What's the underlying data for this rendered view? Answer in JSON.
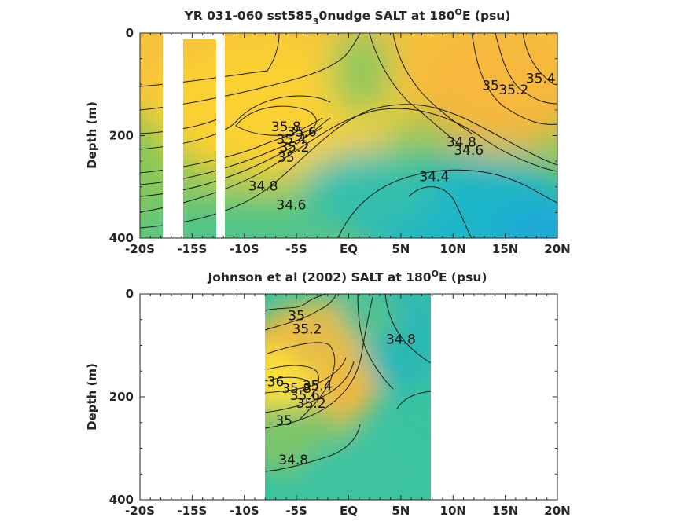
{
  "chart_data": [
    {
      "type": "heatmap",
      "subtype": "filled-contour",
      "title": "YR 031-060 sst585",
      "title_subscript": "3",
      "title_rest": "0nudge SALT at 180",
      "title_superscript": "O",
      "title_end": "E (psu)",
      "ylabel": "Depth (m)",
      "xlim": [
        -20,
        20
      ],
      "ylim": [
        0,
        400
      ],
      "y_reversed": true,
      "x_ticks": [
        -20,
        -15,
        -10,
        -5,
        0,
        5,
        10,
        15,
        20
      ],
      "x_tick_labels": [
        "-20S",
        "-15S",
        "-10S",
        "-5S",
        "EQ",
        "5N",
        "10N",
        "15N",
        "20N"
      ],
      "y_ticks": [
        0,
        200,
        400
      ],
      "y_tick_labels": [
        "0",
        "200",
        "400"
      ],
      "data_extent": [
        -20,
        20
      ],
      "blank_columns": [
        [
          -18.0,
          -16.2
        ],
        [
          -13.2,
          -12.3
        ]
      ],
      "colormap": "parula",
      "color_range": [
        34.2,
        36.0
      ],
      "contour_labels": [
        {
          "value": "35.8",
          "x": -6.0,
          "y": 182
        },
        {
          "value": "35.6",
          "x": -4.5,
          "y": 192
        },
        {
          "value": "35.4",
          "x": -5.5,
          "y": 207
        },
        {
          "value": "35.2",
          "x": -5.2,
          "y": 222
        },
        {
          "value": "35",
          "x": -6.0,
          "y": 242
        },
        {
          "value": "34.8",
          "x": -8.2,
          "y": 298
        },
        {
          "value": "34.6",
          "x": -5.5,
          "y": 335
        },
        {
          "value": "34.4",
          "x": 8.2,
          "y": 280
        },
        {
          "value": "34.6",
          "x": 11.5,
          "y": 228
        },
        {
          "value": "34.8",
          "x": 10.8,
          "y": 212
        },
        {
          "value": "35",
          "x": 13.6,
          "y": 102
        },
        {
          "value": "35.2",
          "x": 15.8,
          "y": 110
        },
        {
          "value": "35.4",
          "x": 18.4,
          "y": 88
        }
      ]
    },
    {
      "type": "heatmap",
      "subtype": "filled-contour",
      "title": "Johnson et al (2002) SALT at 180",
      "title_superscript": "O",
      "title_end": "E (psu)",
      "ylabel": "Depth (m)",
      "xlim": [
        -20,
        20
      ],
      "ylim": [
        0,
        400
      ],
      "y_reversed": true,
      "x_ticks": [
        -20,
        -15,
        -10,
        -5,
        0,
        5,
        10,
        15,
        20
      ],
      "x_tick_labels": [
        "-20S",
        "-15S",
        "-10S",
        "-5S",
        "EQ",
        "5N",
        "10N",
        "15N",
        "20N"
      ],
      "y_ticks": [
        0,
        200,
        400
      ],
      "y_tick_labels": [
        "0",
        "200",
        "400"
      ],
      "data_extent": [
        -8,
        8
      ],
      "colormap": "parula",
      "color_range": [
        34.2,
        36.0
      ],
      "contour_labels": [
        {
          "value": "35",
          "x": -5.0,
          "y": 42
        },
        {
          "value": "35.2",
          "x": -4.0,
          "y": 68
        },
        {
          "value": "34.8",
          "x": 5.0,
          "y": 88
        },
        {
          "value": "36",
          "x": -7.0,
          "y": 170
        },
        {
          "value": "35.8",
          "x": -5.0,
          "y": 183
        },
        {
          "value": "35.6",
          "x": -4.2,
          "y": 197
        },
        {
          "value": "35.4",
          "x": -3.0,
          "y": 178
        },
        {
          "value": "35.2",
          "x": -3.6,
          "y": 212
        },
        {
          "value": "35",
          "x": -6.2,
          "y": 246
        },
        {
          "value": "34.8",
          "x": -5.3,
          "y": 322
        }
      ]
    }
  ]
}
